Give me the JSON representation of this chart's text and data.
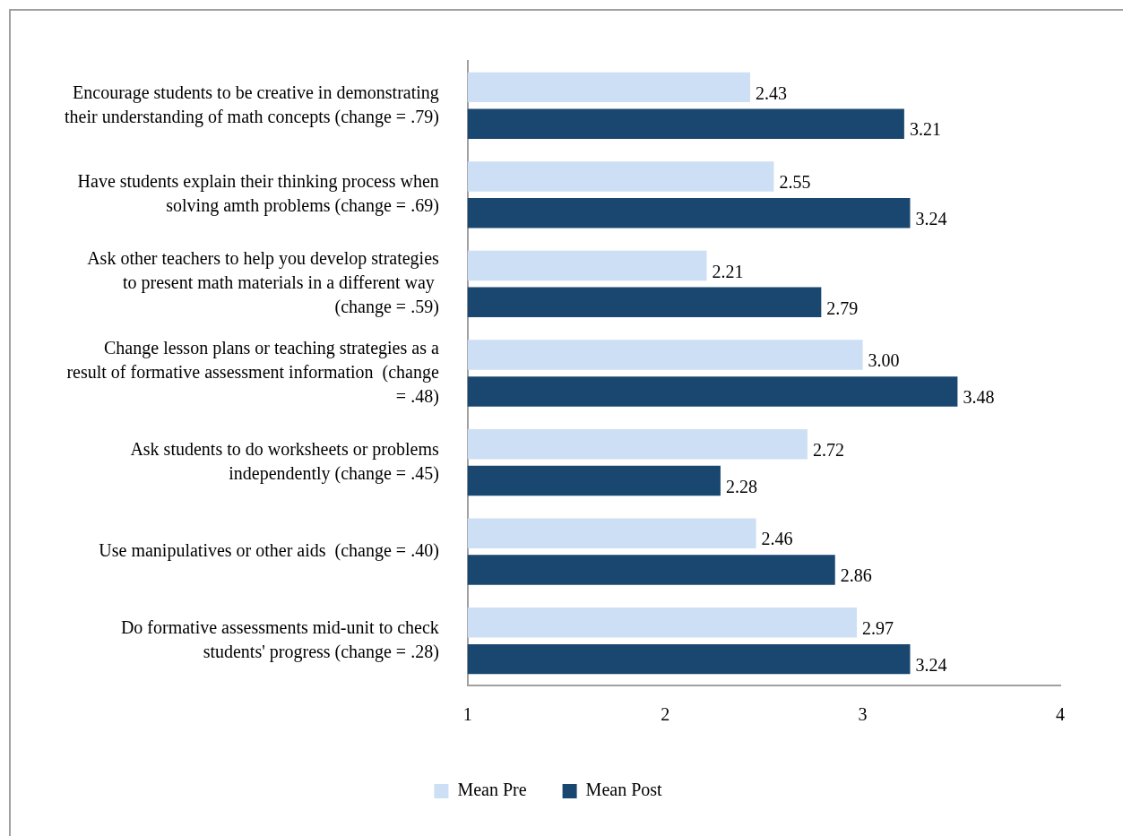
{
  "chart_data": {
    "type": "bar",
    "orientation": "horizontal",
    "categories": [
      "Encourage students to be creative in demonstrating their understanding of math concepts (change = .79)",
      "Have students explain their thinking process when solving amth problems (change = .69)",
      "Ask other teachers to help you develop strategies to present math materials in a different way  (change = .59)",
      "Change lesson plans or teaching strategies as a result of formative assessment information  (change = .48)",
      "Ask students to do worksheets or problems independently (change = .45)",
      "Use manipulatives or other aids  (change = .40)",
      "Do formative assessments mid-unit to check students' progress (change = .28)"
    ],
    "series": [
      {
        "name": "Mean Pre",
        "color": "#cddff4",
        "values": [
          2.43,
          2.55,
          2.21,
          3.0,
          2.72,
          2.46,
          2.97
        ],
        "value_labels": [
          "2.43",
          "2.55",
          "2.21",
          "3.00",
          "2.72",
          "2.46",
          "2.97"
        ]
      },
      {
        "name": "Mean Post",
        "color": "#1a476f",
        "values": [
          3.21,
          3.24,
          2.79,
          3.48,
          2.28,
          2.86,
          3.24
        ],
        "value_labels": [
          "3.21",
          "3.24",
          "2.79",
          "3.48",
          "2.28",
          "2.86",
          "3.24"
        ]
      }
    ],
    "xlim": [
      1,
      4
    ],
    "xticks": [
      1,
      2,
      3,
      4
    ],
    "grid": false,
    "legend": "bottom"
  }
}
